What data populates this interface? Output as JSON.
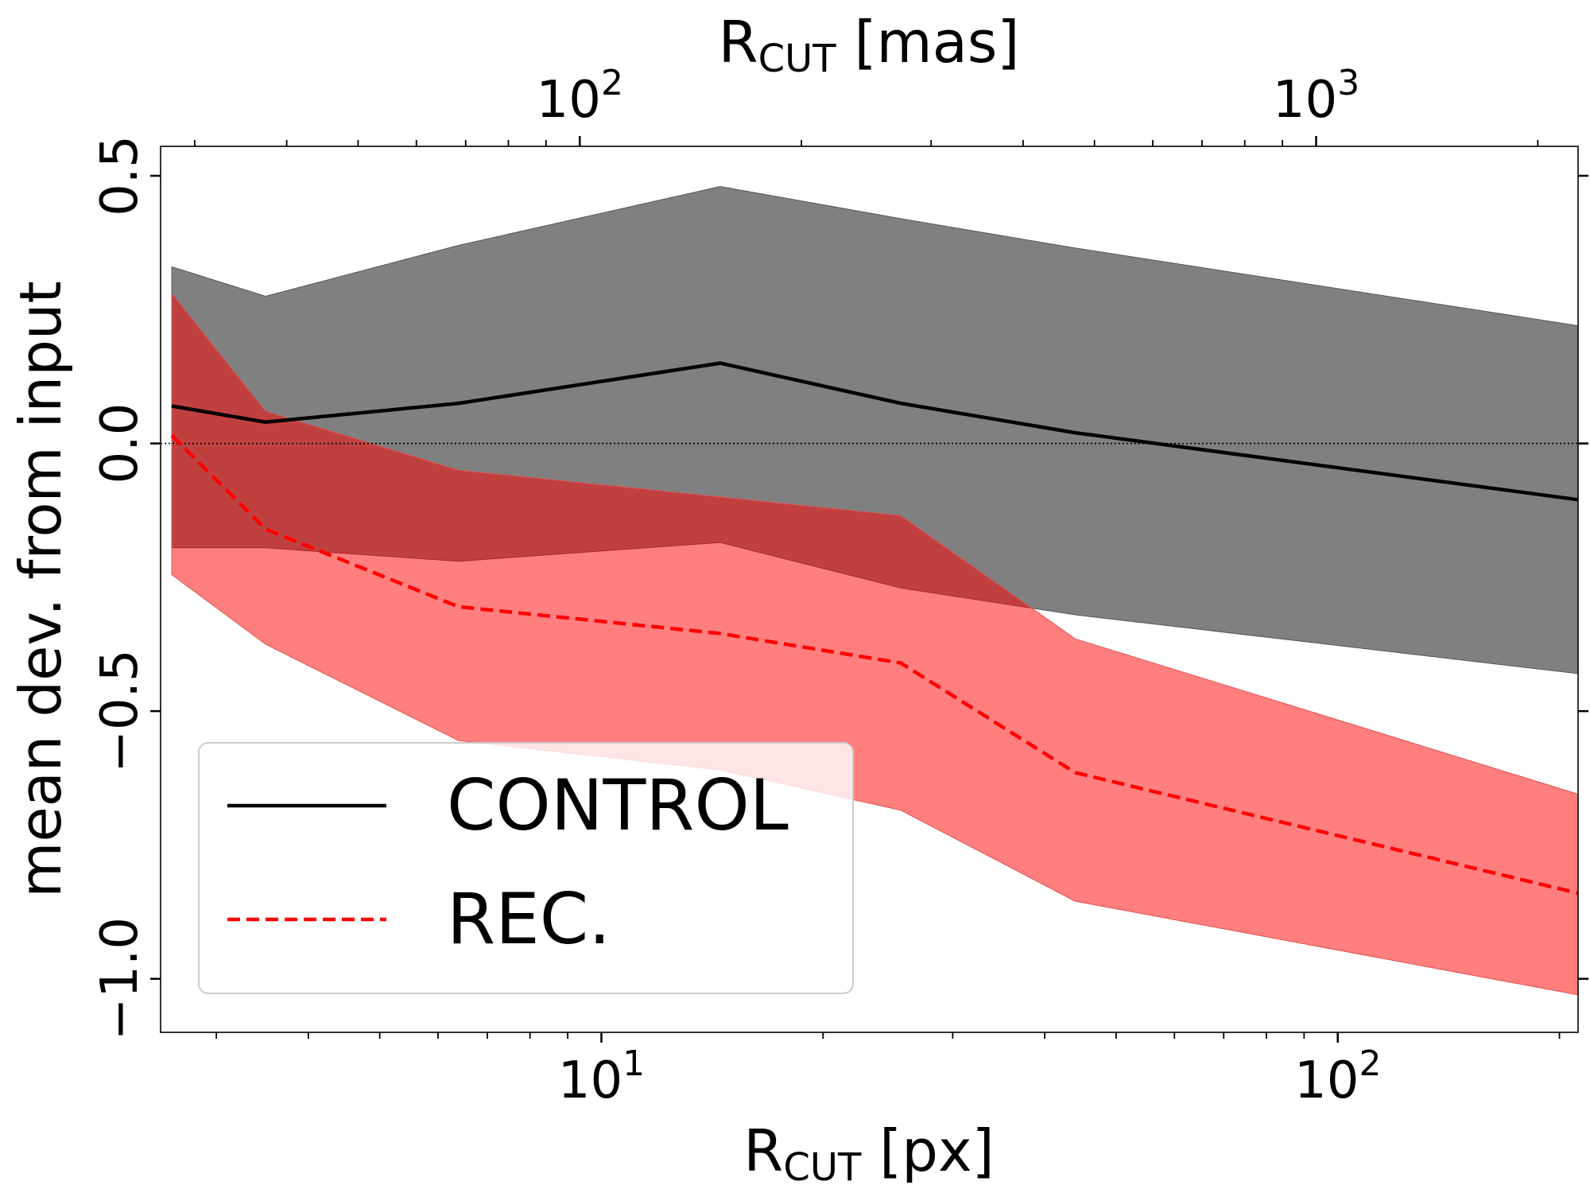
{
  "chart_data": {
    "type": "line",
    "x_scale": "log",
    "xlabel": {
      "main": "R",
      "sub": "CUT",
      "unit": "[px]"
    },
    "x2label": {
      "main": "R",
      "sub": "CUT",
      "unit": "[mas]"
    },
    "ylabel": "mean dev. from input",
    "xlim": [
      2.52,
      212
    ],
    "ylim": [
      -1.1,
      0.555
    ],
    "x2_per_x": 10.7,
    "x_major_ticks": [
      {
        "value": 10,
        "base": "10",
        "exp": "1"
      },
      {
        "value": 100,
        "base": "10",
        "exp": "2"
      }
    ],
    "x2_major_ticks": [
      {
        "value": 100,
        "base": "10",
        "exp": "2"
      },
      {
        "value": 1000,
        "base": "10",
        "exp": "3"
      }
    ],
    "y_ticks": [
      {
        "value": 0.5,
        "label": "0.5"
      },
      {
        "value": 0.0,
        "label": "0.0"
      },
      {
        "value": -0.5,
        "label": "−0.5"
      },
      {
        "value": -1.0,
        "label": "−1.0"
      }
    ],
    "reference_line": {
      "y": 0,
      "style": "dotted"
    },
    "x": [
      2.61,
      3.5,
      6.4,
      14.5,
      25.5,
      44.0,
      212
    ],
    "series": [
      {
        "name": "CONTROL",
        "style": "solid",
        "color": "#000000",
        "band_color": "#808080",
        "values": [
          0.07,
          0.04,
          0.075,
          0.15,
          0.075,
          0.02,
          -0.105
        ],
        "band_upper": [
          0.33,
          0.275,
          0.37,
          0.48,
          0.42,
          0.365,
          0.22
        ],
        "band_lower": [
          -0.195,
          -0.195,
          -0.22,
          -0.185,
          -0.27,
          -0.32,
          -0.43
        ]
      },
      {
        "name": "REC.",
        "style": "dashed",
        "color": "#ff0000",
        "band_color": "#ff0000",
        "values": [
          0.015,
          -0.16,
          -0.305,
          -0.355,
          -0.41,
          -0.615,
          -0.84
        ],
        "band_upper": [
          0.28,
          0.06,
          -0.05,
          -0.1,
          -0.135,
          -0.365,
          -0.655
        ],
        "band_lower": [
          -0.245,
          -0.375,
          -0.555,
          -0.61,
          -0.685,
          -0.855,
          -1.03
        ]
      }
    ],
    "legend": {
      "position": "lower-left",
      "entries": [
        "CONTROL",
        "REC."
      ]
    }
  }
}
